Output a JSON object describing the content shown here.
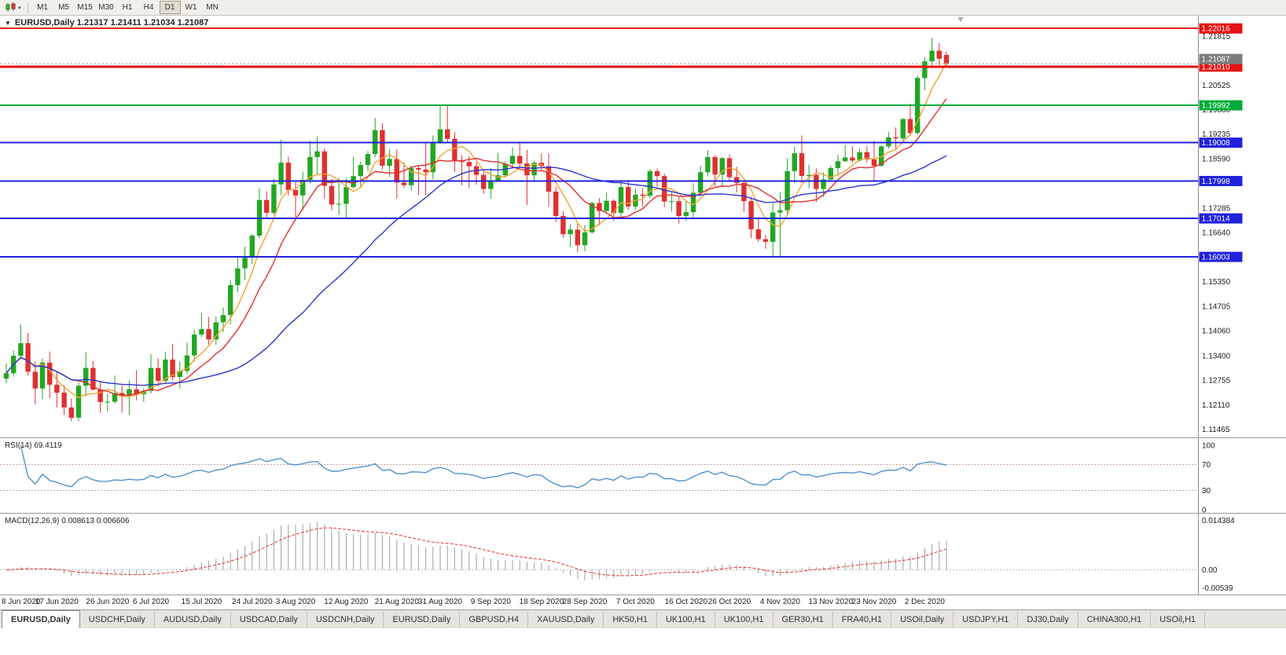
{
  "toolbar": {
    "timeframes": [
      "M1",
      "M5",
      "M15",
      "M30",
      "H1",
      "H4",
      "D1",
      "W1",
      "MN"
    ],
    "active_timeframe": "D1"
  },
  "chart": {
    "readout": "EURUSD,Daily 1.21317 1.21411 1.21034 1.21087",
    "symbol": "EURUSD",
    "period": "Daily",
    "current_price_label": "1.21087",
    "y_axis_ticks": [
      1.21815,
      1.20525,
      1.1988,
      1.19235,
      1.1859,
      1.17285,
      1.1664,
      1.1535,
      1.14705,
      1.1406,
      1.134,
      1.12755,
      1.1211,
      1.11465
    ],
    "levels": [
      {
        "price": 1.22016,
        "label": "1.22016",
        "color": "#e81212",
        "width": 2
      },
      {
        "price": 1.2101,
        "label": "1.21010",
        "color": "#e81212",
        "width": 3
      },
      {
        "price": 1.19992,
        "label": "1.19992",
        "color": "#00ac3a",
        "width": 2
      },
      {
        "price": 1.19008,
        "label": "1.19008",
        "color": "#2121dd",
        "width": 2
      },
      {
        "price": 1.17998,
        "label": "1.17998",
        "color": "#2121dd",
        "width": 2
      },
      {
        "price": 1.17014,
        "label": "1.17014",
        "color": "#2121dd",
        "width": 2
      },
      {
        "price": 1.16003,
        "label": "1.16003",
        "color": "#2121dd",
        "width": 2
      }
    ],
    "colors": {
      "bull": "#23a623",
      "bear": "#e03030",
      "ma_fast": "#f0a434",
      "ma_mid": "#e03030",
      "ma_slow": "#2a35cf",
      "bid_line": "#9a9a9a",
      "bid_tag": "#7b7b7b",
      "axis_text": "#1c1c1c"
    },
    "ma_periods": {
      "fast": 5,
      "mid": 10,
      "slow": 30
    }
  },
  "rsi": {
    "label": "RSI(14) 69.4119",
    "period": 14,
    "value": 69.4119,
    "axis_labels": [
      100,
      70,
      30,
      0
    ],
    "upper_level": 70,
    "lower_level": 30,
    "line_color": "#4f93cf"
  },
  "macd": {
    "label": "MACD(12,26,9) 0.008613 0.006606",
    "fast": 12,
    "slow": 26,
    "signal": 9,
    "macd_value": 0.008613,
    "signal_value": 0.006606,
    "axis_top": "0.014384",
    "axis_zero": "0.00",
    "axis_bottom": "-0.00539",
    "histogram_color": "#9aa0a0",
    "signal_color": "#e03030"
  },
  "x_axis_labels": [
    {
      "text": "8 Jun 2020",
      "i": 0
    },
    {
      "text": "17 Jun 2020",
      "i": 7
    },
    {
      "text": "26 Jun 2020",
      "i": 14
    },
    {
      "text": "6 Jul 2020",
      "i": 20
    },
    {
      "text": "15 Jul 2020",
      "i": 27
    },
    {
      "text": "24 Jul 2020",
      "i": 34
    },
    {
      "text": "3 Aug 2020",
      "i": 40
    },
    {
      "text": "12 Aug 2020",
      "i": 47
    },
    {
      "text": "21 Aug 2020",
      "i": 54
    },
    {
      "text": "31 Aug 2020",
      "i": 60
    },
    {
      "text": "9 Sep 2020",
      "i": 67
    },
    {
      "text": "18 Sep 2020",
      "i": 74
    },
    {
      "text": "28 Sep 2020",
      "i": 80
    },
    {
      "text": "7 Oct 2020",
      "i": 87
    },
    {
      "text": "16 Oct 2020",
      "i": 94
    },
    {
      "text": "26 Oct 2020",
      "i": 100
    },
    {
      "text": "4 Nov 2020",
      "i": 107
    },
    {
      "text": "13 Nov 2020",
      "i": 114
    },
    {
      "text": "23 Nov 2020",
      "i": 120
    },
    {
      "text": "2 Dec 2020",
      "i": 127
    }
  ],
  "chart_data": {
    "type": "candlestick",
    "symbol": "EURUSD",
    "timeframe": "Daily",
    "y_range": [
      1.1125,
      1.2235
    ],
    "ohlc_last": {
      "open": 1.21317,
      "high": 1.21411,
      "low": 1.21034,
      "close": 1.21087
    },
    "candles": [
      [
        1.128,
        1.132,
        1.1268,
        1.1294
      ],
      [
        1.1294,
        1.1354,
        1.1285,
        1.134
      ],
      [
        1.134,
        1.1422,
        1.1332,
        1.1373
      ],
      [
        1.1373,
        1.14,
        1.1288,
        1.1298
      ],
      [
        1.1298,
        1.1325,
        1.1212,
        1.1254
      ],
      [
        1.1254,
        1.1333,
        1.1226,
        1.1322
      ],
      [
        1.1322,
        1.1351,
        1.1228,
        1.1264
      ],
      [
        1.1264,
        1.1296,
        1.1204,
        1.1243
      ],
      [
        1.1243,
        1.1262,
        1.1185,
        1.1204
      ],
      [
        1.1204,
        1.1227,
        1.1168,
        1.1177
      ],
      [
        1.1177,
        1.127,
        1.1168,
        1.1261
      ],
      [
        1.1261,
        1.1349,
        1.1233,
        1.1308
      ],
      [
        1.1308,
        1.1326,
        1.1248,
        1.1251
      ],
      [
        1.1251,
        1.1272,
        1.119,
        1.1218
      ],
      [
        1.1218,
        1.124,
        1.1194,
        1.1219
      ],
      [
        1.1219,
        1.1288,
        1.1214,
        1.1242
      ],
      [
        1.1242,
        1.1262,
        1.1191,
        1.1234
      ],
      [
        1.1234,
        1.1275,
        1.1185,
        1.1252
      ],
      [
        1.1252,
        1.1302,
        1.1223,
        1.1239
      ],
      [
        1.1239,
        1.1254,
        1.1219,
        1.1248
      ],
      [
        1.1248,
        1.1345,
        1.1241,
        1.1308
      ],
      [
        1.1308,
        1.1333,
        1.1259,
        1.1274
      ],
      [
        1.1274,
        1.1351,
        1.1266,
        1.133
      ],
      [
        1.133,
        1.1371,
        1.1275,
        1.1284
      ],
      [
        1.1284,
        1.1325,
        1.1254,
        1.13
      ],
      [
        1.13,
        1.1375,
        1.1292,
        1.1341
      ],
      [
        1.1341,
        1.1409,
        1.1325,
        1.1396
      ],
      [
        1.1396,
        1.1452,
        1.139,
        1.141
      ],
      [
        1.141,
        1.1442,
        1.137,
        1.1383
      ],
      [
        1.1383,
        1.1444,
        1.1369,
        1.1428
      ],
      [
        1.1428,
        1.1467,
        1.1402,
        1.1447
      ],
      [
        1.1447,
        1.1539,
        1.1422,
        1.1526
      ],
      [
        1.1526,
        1.1601,
        1.1507,
        1.157
      ],
      [
        1.157,
        1.1627,
        1.154,
        1.1598
      ],
      [
        1.1598,
        1.166,
        1.1581,
        1.1656
      ],
      [
        1.1656,
        1.1781,
        1.1649,
        1.175
      ],
      [
        1.175,
        1.1773,
        1.1701,
        1.1716
      ],
      [
        1.1716,
        1.1806,
        1.1711,
        1.1791
      ],
      [
        1.1791,
        1.1909,
        1.1762,
        1.1848
      ],
      [
        1.1848,
        1.1864,
        1.1762,
        1.1776
      ],
      [
        1.1776,
        1.1797,
        1.1696,
        1.1762
      ],
      [
        1.1762,
        1.1824,
        1.1723,
        1.1803
      ],
      [
        1.1803,
        1.1906,
        1.1793,
        1.1863
      ],
      [
        1.1863,
        1.1917,
        1.1818,
        1.1878
      ],
      [
        1.1878,
        1.1886,
        1.1754,
        1.1787
      ],
      [
        1.1787,
        1.1805,
        1.1723,
        1.1738
      ],
      [
        1.1738,
        1.1807,
        1.171,
        1.174
      ],
      [
        1.174,
        1.1807,
        1.17,
        1.1784
      ],
      [
        1.1784,
        1.1864,
        1.178,
        1.1813
      ],
      [
        1.1813,
        1.1851,
        1.1783,
        1.1842
      ],
      [
        1.1842,
        1.1879,
        1.1826,
        1.1871
      ],
      [
        1.1871,
        1.1966,
        1.1862,
        1.1934
      ],
      [
        1.1934,
        1.1952,
        1.183,
        1.184
      ],
      [
        1.184,
        1.1883,
        1.181,
        1.1858
      ],
      [
        1.1858,
        1.1883,
        1.1754,
        1.1796
      ],
      [
        1.1796,
        1.1848,
        1.1782,
        1.1789
      ],
      [
        1.1789,
        1.184,
        1.1774,
        1.1834
      ],
      [
        1.1834,
        1.1841,
        1.1763,
        1.183
      ],
      [
        1.183,
        1.19,
        1.1762,
        1.1823
      ],
      [
        1.1823,
        1.192,
        1.1805,
        1.1903
      ],
      [
        1.1903,
        1.1997,
        1.1898,
        1.1936
      ],
      [
        1.1936,
        1.2,
        1.1901,
        1.1911
      ],
      [
        1.1911,
        1.1928,
        1.1823,
        1.1854
      ],
      [
        1.1854,
        1.1868,
        1.1789,
        1.185
      ],
      [
        1.185,
        1.1865,
        1.1781,
        1.1839
      ],
      [
        1.1839,
        1.1849,
        1.179,
        1.1816
      ],
      [
        1.1816,
        1.1828,
        1.1766,
        1.1779
      ],
      [
        1.1779,
        1.1834,
        1.1753,
        1.1801
      ],
      [
        1.1801,
        1.1874,
        1.18,
        1.1815
      ],
      [
        1.1815,
        1.1852,
        1.1809,
        1.1845
      ],
      [
        1.1845,
        1.1888,
        1.1836,
        1.1866
      ],
      [
        1.1866,
        1.1901,
        1.1838,
        1.1846
      ],
      [
        1.1846,
        1.1882,
        1.1737,
        1.1815
      ],
      [
        1.1815,
        1.1853,
        1.1797,
        1.1848
      ],
      [
        1.1848,
        1.1872,
        1.1827,
        1.1839
      ],
      [
        1.1839,
        1.1872,
        1.1732,
        1.1772
      ],
      [
        1.1772,
        1.1786,
        1.1692,
        1.1708
      ],
      [
        1.1708,
        1.172,
        1.1651,
        1.166
      ],
      [
        1.166,
        1.1686,
        1.1626,
        1.1672
      ],
      [
        1.1672,
        1.1688,
        1.1612,
        1.1631
      ],
      [
        1.1631,
        1.1684,
        1.1615,
        1.1665
      ],
      [
        1.1665,
        1.1745,
        1.1661,
        1.1742
      ],
      [
        1.1742,
        1.1755,
        1.1684,
        1.1721
      ],
      [
        1.1721,
        1.1769,
        1.1717,
        1.1748
      ],
      [
        1.1748,
        1.1752,
        1.1695,
        1.1716
      ],
      [
        1.1716,
        1.1797,
        1.1706,
        1.1784
      ],
      [
        1.1784,
        1.1798,
        1.1724,
        1.1733
      ],
      [
        1.1733,
        1.1781,
        1.1724,
        1.1764
      ],
      [
        1.1764,
        1.1781,
        1.1732,
        1.1761
      ],
      [
        1.1761,
        1.1831,
        1.1754,
        1.1826
      ],
      [
        1.1826,
        1.1833,
        1.1785,
        1.1813
      ],
      [
        1.1813,
        1.1819,
        1.1731,
        1.1746
      ],
      [
        1.1746,
        1.1773,
        1.172,
        1.1747
      ],
      [
        1.1747,
        1.1758,
        1.1688,
        1.1708
      ],
      [
        1.1708,
        1.1747,
        1.1694,
        1.1718
      ],
      [
        1.1718,
        1.1794,
        1.1703,
        1.1769
      ],
      [
        1.1769,
        1.184,
        1.176,
        1.1823
      ],
      [
        1.1823,
        1.1881,
        1.1812,
        1.1863
      ],
      [
        1.1863,
        1.1868,
        1.1786,
        1.1817
      ],
      [
        1.1817,
        1.1863,
        1.1787,
        1.186
      ],
      [
        1.186,
        1.187,
        1.18,
        1.181
      ],
      [
        1.181,
        1.1837,
        1.177,
        1.1795
      ],
      [
        1.1795,
        1.18,
        1.1718,
        1.1747
      ],
      [
        1.1747,
        1.1759,
        1.165,
        1.1673
      ],
      [
        1.1673,
        1.1704,
        1.164,
        1.1647
      ],
      [
        1.1647,
        1.1659,
        1.1622,
        1.164
      ],
      [
        1.164,
        1.1741,
        1.1603,
        1.1717
      ],
      [
        1.1717,
        1.1771,
        1.1602,
        1.1723
      ],
      [
        1.1723,
        1.186,
        1.1712,
        1.1826
      ],
      [
        1.1826,
        1.189,
        1.1795,
        1.1873
      ],
      [
        1.1873,
        1.192,
        1.1795,
        1.1813
      ],
      [
        1.1813,
        1.1843,
        1.1781,
        1.1816
      ],
      [
        1.1816,
        1.1833,
        1.1745,
        1.1779
      ],
      [
        1.1779,
        1.1823,
        1.1758,
        1.1804
      ],
      [
        1.1804,
        1.184,
        1.1799,
        1.1834
      ],
      [
        1.1834,
        1.1869,
        1.1814,
        1.1852
      ],
      [
        1.1852,
        1.1894,
        1.185,
        1.1862
      ],
      [
        1.1862,
        1.1891,
        1.1847,
        1.1854
      ],
      [
        1.1854,
        1.1885,
        1.1851,
        1.1876
      ],
      [
        1.1876,
        1.1891,
        1.1849,
        1.1857
      ],
      [
        1.1857,
        1.1906,
        1.18,
        1.184
      ],
      [
        1.184,
        1.1895,
        1.1837,
        1.1891
      ],
      [
        1.1891,
        1.1929,
        1.1885,
        1.1915
      ],
      [
        1.1915,
        1.1941,
        1.1886,
        1.1912
      ],
      [
        1.1912,
        1.1965,
        1.1901,
        1.1963
      ],
      [
        1.1963,
        1.2003,
        1.1924,
        1.1926
      ],
      [
        1.1926,
        1.2077,
        1.1922,
        1.2071
      ],
      [
        1.2071,
        1.2125,
        1.204,
        1.2115
      ],
      [
        1.2115,
        1.2177,
        1.2096,
        1.2143
      ],
      [
        1.2143,
        1.2163,
        1.2105,
        1.2122
      ],
      [
        1.21317,
        1.21411,
        1.21034,
        1.21087
      ]
    ]
  },
  "tabs": {
    "active_index": 0,
    "items": [
      "EURUSD,Daily",
      "USDCHF,Daily",
      "AUDUSD,Daily",
      "USDCAD,Daily",
      "USDCNH,Daily",
      "EURUSD,Daily",
      "GBPUSD,H4",
      "XAUUSD,Daily",
      "HK50,H1",
      "UK100,H1",
      "UK100,H1",
      "GER30,H1",
      "FRA40,H1",
      "USOil,Daily",
      "USDJPY,H1",
      "DJ30,Daily",
      "CHINA300,H1",
      "USOil,H1"
    ]
  }
}
